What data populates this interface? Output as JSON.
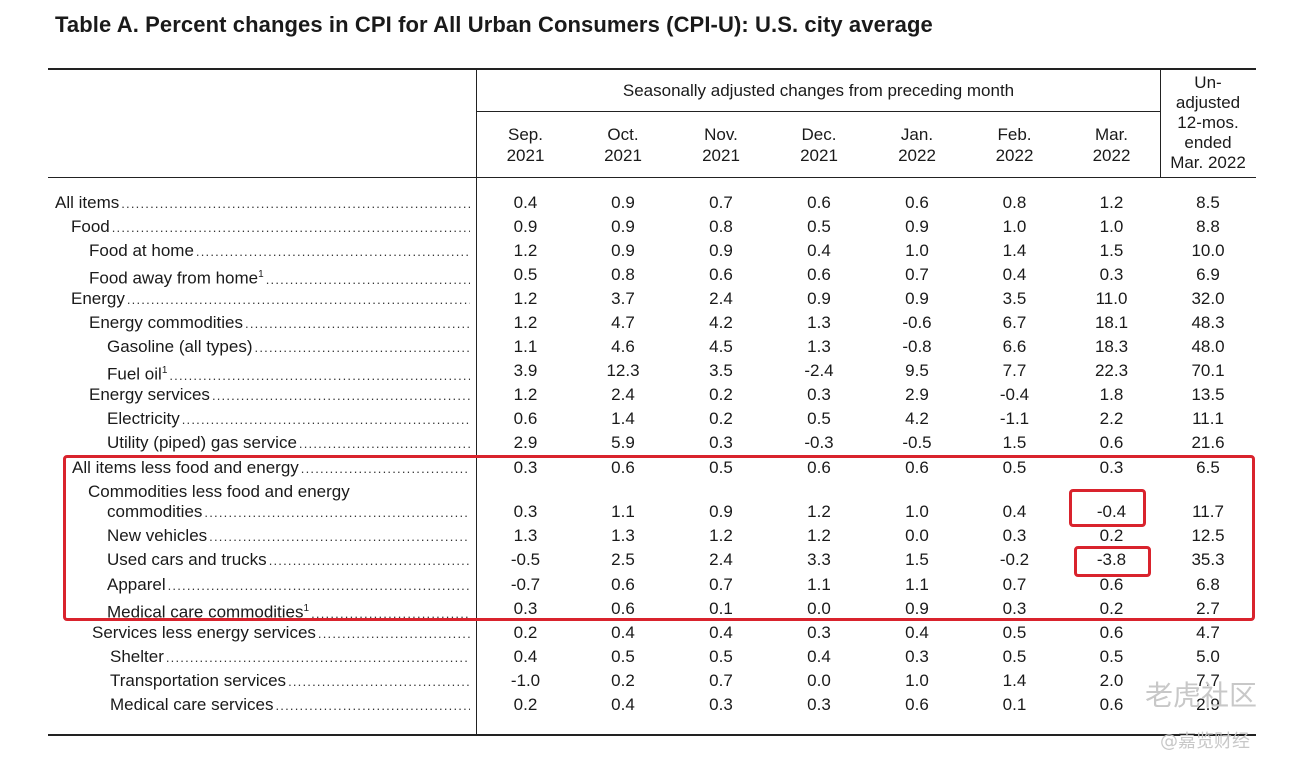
{
  "title": "Table A. Percent changes in CPI for All Urban Consumers (CPI-U): U.S. city average",
  "header": {
    "group_label": "Seasonally adjusted changes from preceding month",
    "columns": [
      {
        "line1": "Sep.",
        "line2": "2021"
      },
      {
        "line1": "Oct.",
        "line2": "2021"
      },
      {
        "line1": "Nov.",
        "line2": "2021"
      },
      {
        "line1": "Dec.",
        "line2": "2021"
      },
      {
        "line1": "Jan.",
        "line2": "2022"
      },
      {
        "line1": "Feb.",
        "line2": "2022"
      },
      {
        "line1": "Mar.",
        "line2": "2022"
      }
    ],
    "unadjusted": {
      "line1": "Un-",
      "line2": "adjusted",
      "line3": "12-mos.",
      "line4": "ended",
      "line5": "Mar. 2022"
    }
  },
  "rows": [
    {
      "label": "All items",
      "values": [
        "0.4",
        "0.9",
        "0.7",
        "0.6",
        "0.6",
        "0.8",
        "1.2",
        "8.5"
      ]
    },
    {
      "label": "Food",
      "values": [
        "0.9",
        "0.9",
        "0.8",
        "0.5",
        "0.9",
        "1.0",
        "1.0",
        "8.8"
      ]
    },
    {
      "label": "Food at home",
      "values": [
        "1.2",
        "0.9",
        "0.9",
        "0.4",
        "1.0",
        "1.4",
        "1.5",
        "10.0"
      ]
    },
    {
      "label": "Food away from home",
      "footnote": "1",
      "values": [
        "0.5",
        "0.8",
        "0.6",
        "0.6",
        "0.7",
        "0.4",
        "0.3",
        "6.9"
      ]
    },
    {
      "label": "Energy",
      "values": [
        "1.2",
        "3.7",
        "2.4",
        "0.9",
        "0.9",
        "3.5",
        "11.0",
        "32.0"
      ]
    },
    {
      "label": "Energy commodities",
      "values": [
        "1.2",
        "4.7",
        "4.2",
        "1.3",
        "-0.6",
        "6.7",
        "18.1",
        "48.3"
      ]
    },
    {
      "label": "Gasoline (all types)",
      "values": [
        "1.1",
        "4.6",
        "4.5",
        "1.3",
        "-0.8",
        "6.6",
        "18.3",
        "48.0"
      ]
    },
    {
      "label": "Fuel oil",
      "footnote": "1",
      "values": [
        "3.9",
        "12.3",
        "3.5",
        "-2.4",
        "9.5",
        "7.7",
        "22.3",
        "70.1"
      ]
    },
    {
      "label": "Energy services",
      "values": [
        "1.2",
        "2.4",
        "0.2",
        "0.3",
        "2.9",
        "-0.4",
        "1.8",
        "13.5"
      ]
    },
    {
      "label": "Electricity",
      "values": [
        "0.6",
        "1.4",
        "0.2",
        "0.5",
        "4.2",
        "-1.1",
        "2.2",
        "11.1"
      ]
    },
    {
      "label": "Utility (piped) gas service",
      "values": [
        "2.9",
        "5.9",
        "0.3",
        "-0.3",
        "-0.5",
        "1.5",
        "0.6",
        "21.6"
      ]
    },
    {
      "label": "All items less food and energy",
      "values": [
        "0.3",
        "0.6",
        "0.5",
        "0.6",
        "0.6",
        "0.5",
        "0.3",
        "6.5"
      ]
    },
    {
      "label_top": "Commodities less food and energy",
      "label": "commodities",
      "values": [
        "0.3",
        "1.1",
        "0.9",
        "1.2",
        "1.0",
        "0.4",
        "-0.4",
        "11.7"
      ]
    },
    {
      "label": "New vehicles",
      "values": [
        "1.3",
        "1.3",
        "1.2",
        "1.2",
        "0.0",
        "0.3",
        "0.2",
        "12.5"
      ]
    },
    {
      "label": "Used cars and trucks",
      "values": [
        "-0.5",
        "2.5",
        "2.4",
        "3.3",
        "1.5",
        "-0.2",
        "-3.8",
        "35.3"
      ]
    },
    {
      "label": "Apparel",
      "values": [
        "-0.7",
        "0.6",
        "0.7",
        "1.1",
        "1.1",
        "0.7",
        "0.6",
        "6.8"
      ]
    },
    {
      "label": "Medical care commodities",
      "footnote": "1",
      "values": [
        "0.3",
        "0.6",
        "0.1",
        "0.0",
        "0.9",
        "0.3",
        "0.2",
        "2.7"
      ]
    },
    {
      "label": "Services less energy services",
      "values": [
        "0.2",
        "0.4",
        "0.4",
        "0.3",
        "0.4",
        "0.5",
        "0.6",
        "4.7"
      ]
    },
    {
      "label": "Shelter",
      "values": [
        "0.4",
        "0.5",
        "0.5",
        "0.4",
        "0.3",
        "0.5",
        "0.5",
        "5.0"
      ]
    },
    {
      "label": "Transportation services",
      "values": [
        "-1.0",
        "0.2",
        "0.7",
        "0.0",
        "1.0",
        "1.4",
        "2.0",
        "7.7"
      ]
    },
    {
      "label": "Medical care services",
      "values": [
        "0.2",
        "0.4",
        "0.3",
        "0.3",
        "0.6",
        "0.1",
        "0.6",
        "2.9"
      ]
    }
  ],
  "highlight_color": "#d9232d",
  "watermark": {
    "main": "老虎社区",
    "sub": "@嘉览财经"
  }
}
